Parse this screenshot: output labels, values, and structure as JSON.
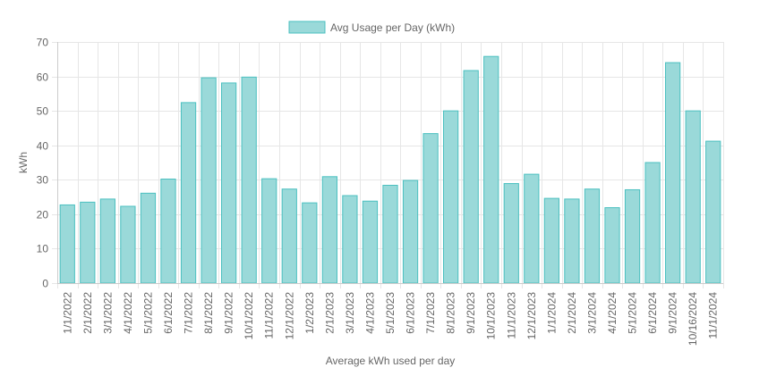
{
  "chart_data": {
    "type": "bar",
    "categories": [
      "1/1/2022",
      "2/1/2022",
      "3/1/2022",
      "4/1/2022",
      "5/1/2022",
      "6/1/2022",
      "7/1/2022",
      "8/1/2022",
      "9/1/2022",
      "10/1/2022",
      "11/1/2022",
      "12/1/2022",
      "1/2/2023",
      "2/1/2023",
      "3/1/2023",
      "4/1/2023",
      "5/1/2023",
      "6/1/2023",
      "7/1/2023",
      "8/1/2023",
      "9/1/2023",
      "10/1/2023",
      "11/1/2023",
      "12/1/2023",
      "1/1/2024",
      "2/1/2024",
      "3/1/2024",
      "4/1/2024",
      "5/1/2024",
      "6/1/2024",
      "9/1/2024",
      "10/16/2024",
      "11/1/2024"
    ],
    "series": [
      {
        "name": "Avg Usage per Day (kWh)",
        "values": [
          22.7,
          23.5,
          24.4,
          22.3,
          26.1,
          30.2,
          52.4,
          59.6,
          58.1,
          59.8,
          30.3,
          27.3,
          23.3,
          30.9,
          25.4,
          23.8,
          28.4,
          29.8,
          43.4,
          50.0,
          61.7,
          65.8,
          28.9,
          31.6,
          24.6,
          24.4,
          27.3,
          21.9,
          27.1,
          35.0,
          64.0,
          50.0,
          41.2
        ]
      }
    ],
    "xlabel": "Average kWh used per day",
    "ylabel": "kWh",
    "ylim": [
      0,
      70
    ],
    "yticks": [
      "0",
      "10",
      "20",
      "30",
      "40",
      "50",
      "60",
      "70"
    ],
    "grid": true,
    "legend_position": "top-center",
    "bar_fill": "#9ad9d9",
    "bar_border": "#4bc0c0",
    "grid_color": "#e6e6e6",
    "text_color": "#666666"
  }
}
